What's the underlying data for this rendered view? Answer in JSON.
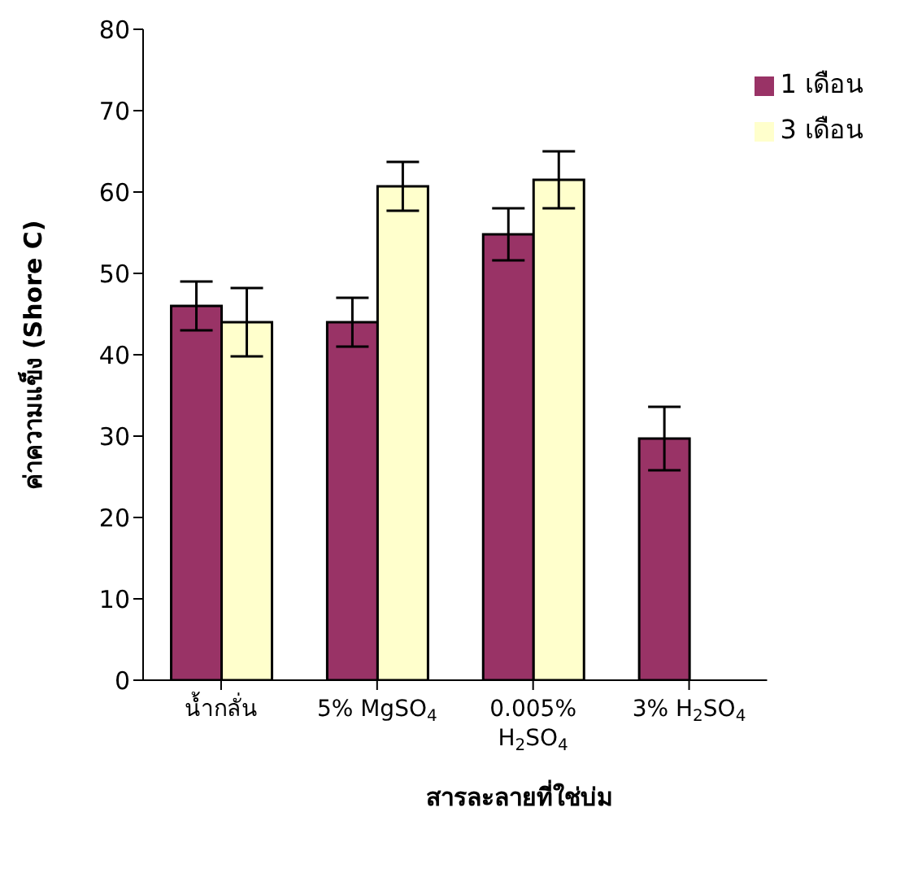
{
  "chart_data": {
    "type": "bar",
    "xlabel": "สารละลายที่ใช่บ่ม",
    "ylabel": "ค่าความแข็ง (Shore C)",
    "categories": [
      "น้ำกลั่น",
      "5% MgSO$_{4}$",
      "0.005% H$_{2}$SO$_{4}$",
      "3% H$_{2}$SO$_{4}$"
    ],
    "series": [
      {
        "name": "1 เดือน",
        "color": "#993366",
        "values": [
          46,
          44,
          54.8,
          29.7
        ],
        "errors": [
          3,
          3,
          3.2,
          3.9
        ]
      },
      {
        "name": "3 เดือน",
        "color": "#ffffcc",
        "values": [
          44,
          60.7,
          61.5,
          0
        ],
        "errors": [
          4.2,
          3,
          3.5,
          null
        ]
      }
    ],
    "ylim": [
      0,
      80
    ],
    "yticks": [
      0,
      10,
      20,
      30,
      40,
      50,
      60,
      70,
      80
    ],
    "grid": false,
    "legend": "top right"
  }
}
